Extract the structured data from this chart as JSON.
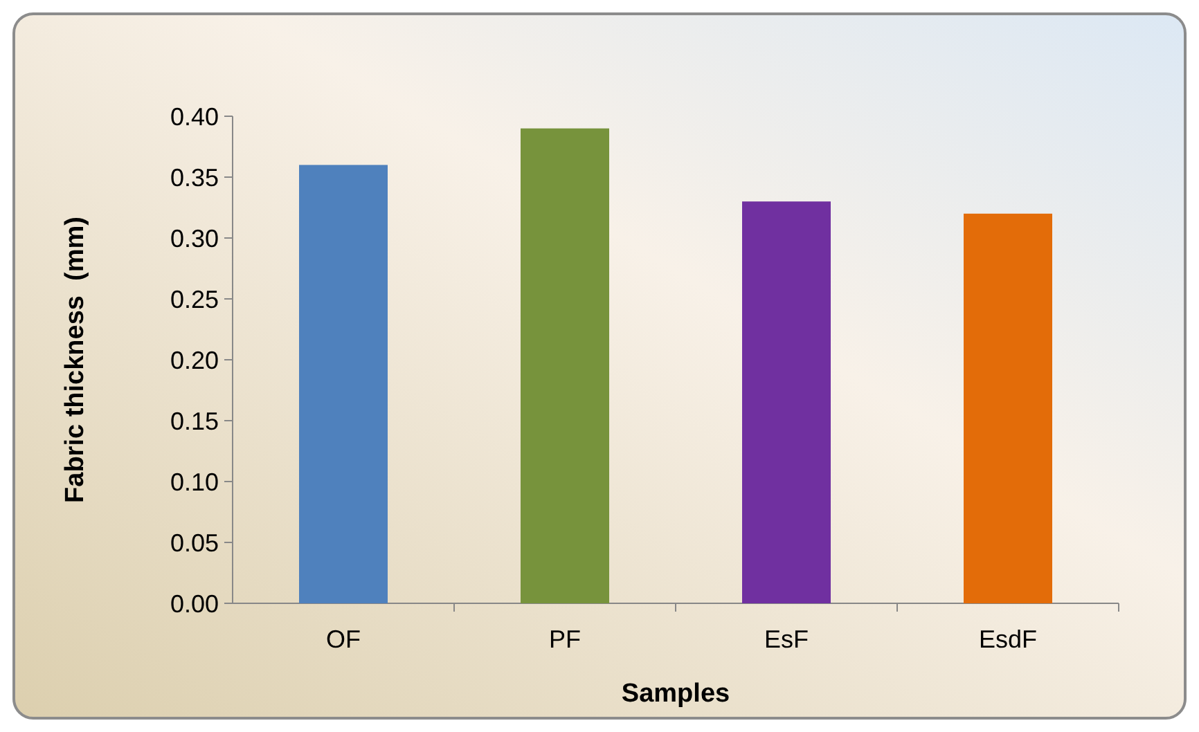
{
  "chart_data": {
    "type": "bar",
    "xlabel": "Samples",
    "ylabel": "Fabric thickness  (mm)",
    "categories": [
      "OF",
      "PF",
      "EsF",
      "EsdF"
    ],
    "values": [
      0.36,
      0.39,
      0.33,
      0.32
    ],
    "colors": [
      "#4f81bd",
      "#77933c",
      "#7030a0",
      "#e36c09"
    ],
    "ylim": [
      0,
      0.4
    ],
    "yticks": [
      {
        "value": 0,
        "label": "0.00"
      },
      {
        "value": 0.05,
        "label": "0.05"
      },
      {
        "value": 0.1,
        "label": "0.10"
      },
      {
        "value": 0.15,
        "label": "0.15"
      },
      {
        "value": 0.2,
        "label": "0.20"
      },
      {
        "value": 0.25,
        "label": "0.25"
      },
      {
        "value": 0.3,
        "label": "0.30"
      },
      {
        "value": 0.35,
        "label": "0.35"
      },
      {
        "value": 0.4,
        "label": "0.40"
      }
    ],
    "grid": false
  }
}
